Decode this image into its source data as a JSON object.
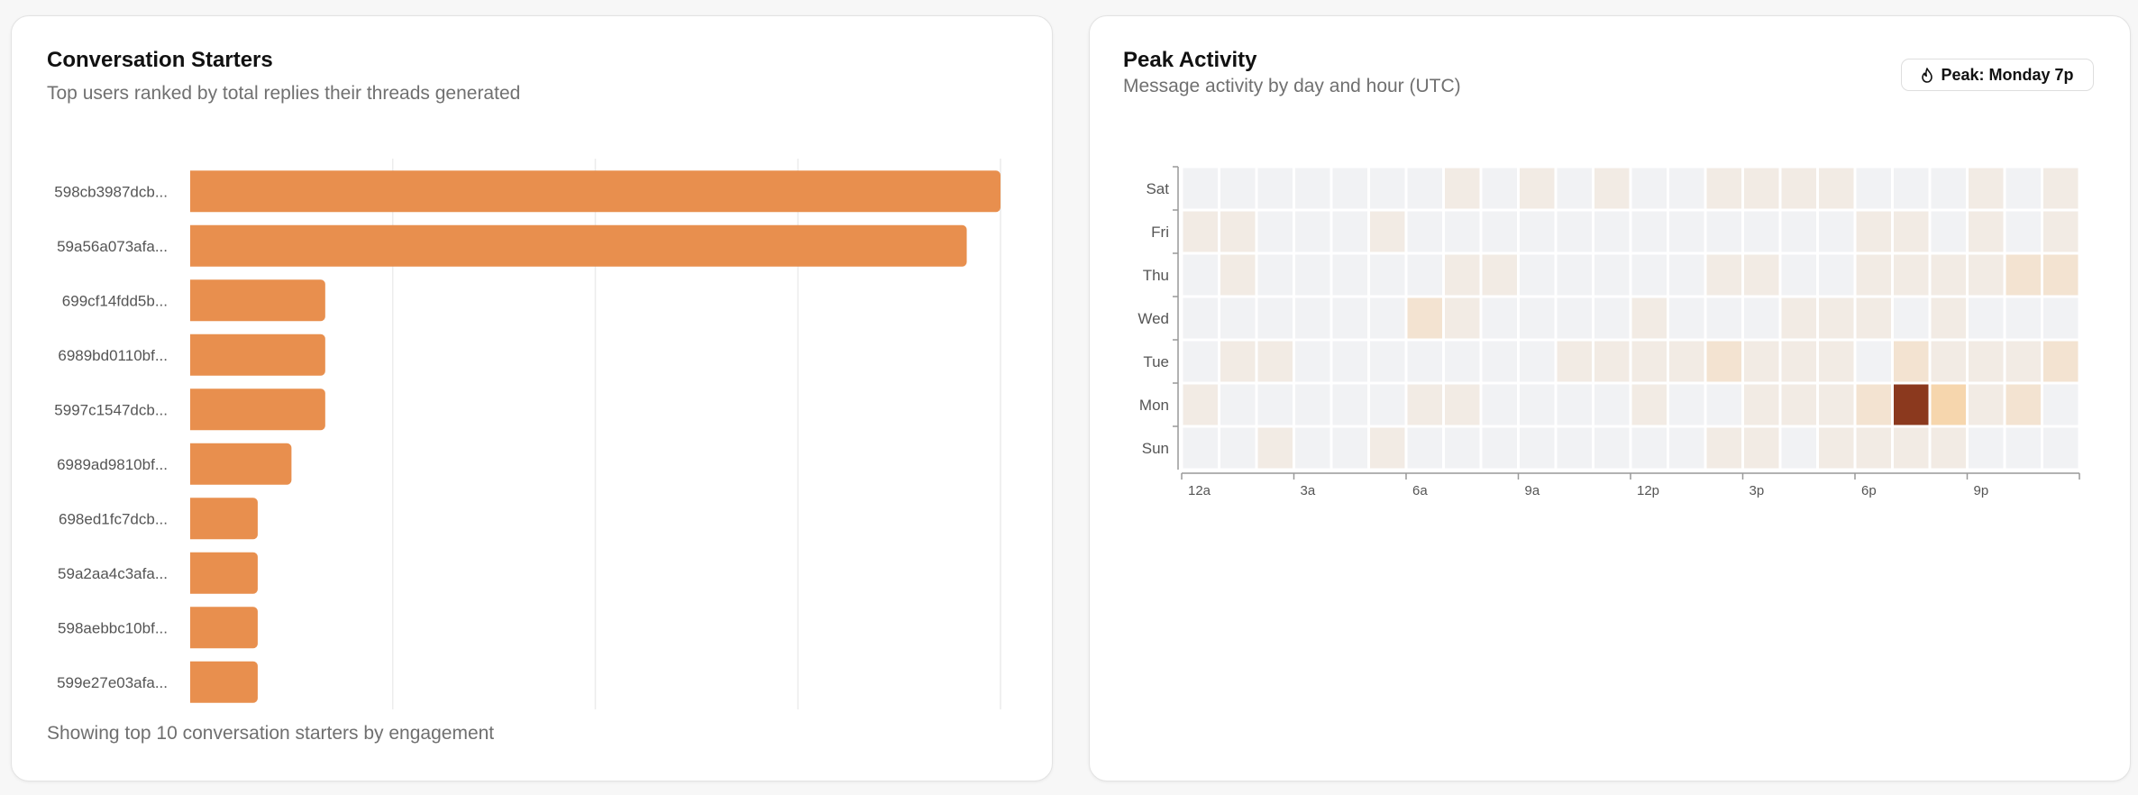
{
  "left_card": {
    "title": "Conversation Starters",
    "subtitle": "Top users ranked by total replies their threads generated",
    "footer": "Showing top 10 conversation starters by engagement"
  },
  "right_card": {
    "title": "Peak Activity",
    "subtitle": "Message activity by day and hour (UTC)",
    "peak_badge": {
      "icon": "flame-icon",
      "label": "Peak: Monday 7p"
    }
  },
  "colors": {
    "bar": "#e88f4e",
    "heat_empty": "#f1f2f4",
    "heat_scale": [
      "#f2ebe4",
      "#f3e3d1",
      "#f6d6ad",
      "#f2b77f",
      "#8b391e"
    ]
  },
  "chart_data": [
    {
      "type": "bar",
      "orientation": "horizontal",
      "categories": [
        "598cb3987dcb...",
        "59a56a073afa...",
        "699cf14fdd5b...",
        "6989bd0110bf...",
        "5997c1547dcb...",
        "6989ad9810bf...",
        "698ed1fc7dcb...",
        "59a2aa4c3afa...",
        "598aebbc10bf...",
        "599e27e03afa..."
      ],
      "values": [
        24,
        23,
        4,
        4,
        4,
        3,
        2,
        2,
        2,
        2
      ],
      "xlim": [
        0,
        24
      ],
      "grid": true,
      "x_tick_labels_visible": false
    },
    {
      "type": "heatmap",
      "rows": [
        "Sat",
        "Fri",
        "Thu",
        "Wed",
        "Tue",
        "Mon",
        "Sun"
      ],
      "columns": [
        "12a",
        "1a",
        "2a",
        "3a",
        "4a",
        "5a",
        "6a",
        "7a",
        "8a",
        "9a",
        "10a",
        "11a",
        "12p",
        "1p",
        "2p",
        "3p",
        "4p",
        "5p",
        "6p",
        "7p",
        "8p",
        "9p",
        "10p",
        "11p"
      ],
      "x_tick_labels": [
        "12a",
        "3a",
        "6a",
        "9a",
        "12p",
        "3p",
        "6p",
        "9p"
      ],
      "values": [
        [
          0,
          0,
          0,
          0,
          0,
          0,
          0,
          1,
          0,
          1,
          0,
          1,
          0,
          0,
          1,
          1,
          1,
          1,
          0,
          0,
          0,
          1,
          0,
          1
        ],
        [
          1,
          1,
          0,
          0,
          0,
          1,
          0,
          0,
          0,
          0,
          0,
          0,
          0,
          0,
          0,
          0,
          0,
          0,
          1,
          1,
          0,
          1,
          0,
          1
        ],
        [
          0,
          1,
          0,
          0,
          0,
          0,
          0,
          1,
          1,
          0,
          0,
          0,
          0,
          0,
          1,
          1,
          0,
          0,
          1,
          1,
          1,
          1,
          2,
          2
        ],
        [
          0,
          0,
          0,
          0,
          0,
          0,
          2,
          1,
          0,
          0,
          0,
          0,
          1,
          0,
          0,
          0,
          1,
          1,
          1,
          0,
          1,
          0,
          0,
          0
        ],
        [
          0,
          1,
          1,
          0,
          0,
          0,
          0,
          0,
          0,
          0,
          1,
          1,
          1,
          1,
          2,
          1,
          1,
          1,
          0,
          2,
          1,
          1,
          1,
          2
        ],
        [
          1,
          0,
          0,
          0,
          0,
          0,
          1,
          1,
          0,
          0,
          0,
          0,
          1,
          0,
          0,
          1,
          1,
          1,
          2,
          5,
          3,
          1,
          2,
          0
        ],
        [
          0,
          0,
          1,
          0,
          0,
          1,
          0,
          0,
          0,
          0,
          0,
          0,
          0,
          0,
          1,
          1,
          0,
          1,
          1,
          1,
          1,
          0,
          0,
          0
        ]
      ],
      "max": 5,
      "peak": {
        "day": "Monday",
        "hour": "7p"
      }
    }
  ]
}
